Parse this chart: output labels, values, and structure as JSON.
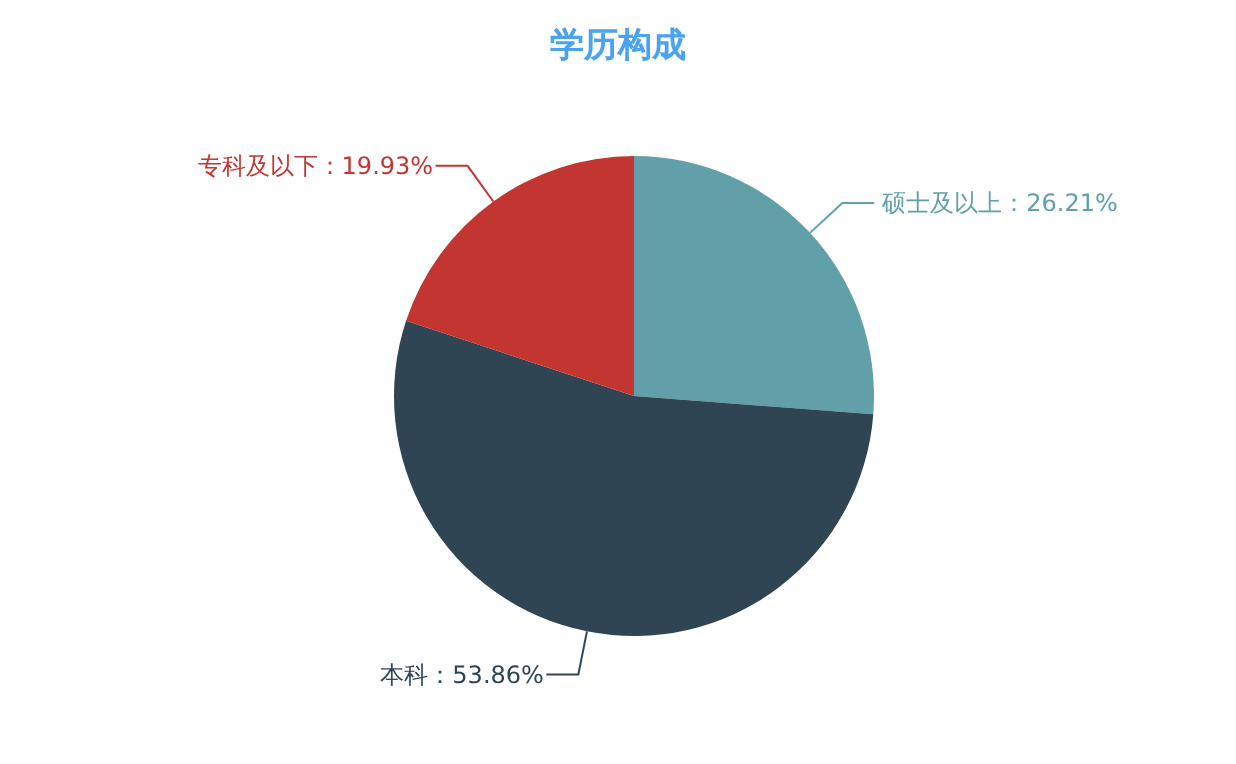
{
  "chart_data": {
    "type": "pie",
    "title": "学历构成",
    "categories": [
      "硕士及以上",
      "本科",
      "专科及以下"
    ],
    "values": [
      26.21,
      53.86,
      19.93
    ],
    "colors": [
      "#61a0a8",
      "#2f4554",
      "#c23531"
    ],
    "value_labels": [
      "：26.21%",
      "：53.86%",
      "：19.93%"
    ]
  }
}
